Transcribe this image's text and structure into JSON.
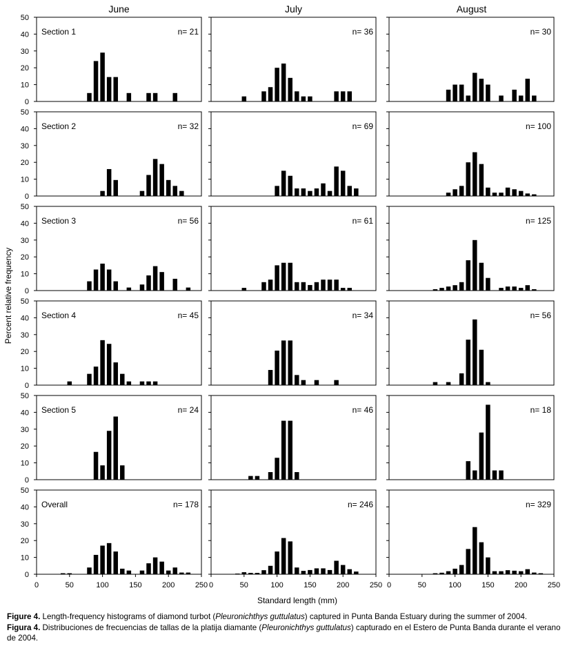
{
  "chart_data": {
    "type": "bar",
    "layout": "grid of small-multiple histograms (6 rows x 3 columns)",
    "ylabel": "Percent relative frequency",
    "xlabel": "Standard length (mm)",
    "x_ticks": [
      0,
      50,
      100,
      150,
      200,
      250
    ],
    "xlim": [
      0,
      250
    ],
    "ylim": [
      0,
      50
    ],
    "y_ticks": [
      0,
      10,
      20,
      30,
      40,
      50
    ],
    "bin_width": 10,
    "columns": [
      "June",
      "July",
      "August"
    ],
    "rows": [
      {
        "label": "Section 1",
        "panels": [
          {
            "n": "n= 21",
            "bars": [
              [
                80,
                5
              ],
              [
                90,
                24
              ],
              [
                100,
                29
              ],
              [
                110,
                14.5
              ],
              [
                120,
                14.5
              ],
              [
                140,
                5
              ],
              [
                170,
                5
              ],
              [
                180,
                5
              ],
              [
                210,
                5
              ]
            ]
          },
          {
            "n": "n= 36",
            "bars": [
              [
                50,
                3
              ],
              [
                80,
                6
              ],
              [
                90,
                8.5
              ],
              [
                100,
                20
              ],
              [
                110,
                22.5
              ],
              [
                120,
                14
              ],
              [
                130,
                6
              ],
              [
                140,
                3
              ],
              [
                150,
                3
              ],
              [
                190,
                6
              ],
              [
                200,
                6
              ],
              [
                210,
                6
              ]
            ]
          },
          {
            "n": "n= 30",
            "bars": [
              [
                90,
                7
              ],
              [
                100,
                10
              ],
              [
                110,
                10
              ],
              [
                120,
                3.5
              ],
              [
                130,
                17
              ],
              [
                140,
                13.5
              ],
              [
                150,
                10
              ],
              [
                170,
                3.5
              ],
              [
                190,
                7
              ],
              [
                200,
                3.5
              ],
              [
                210,
                13.5
              ],
              [
                220,
                3.5
              ]
            ]
          }
        ]
      },
      {
        "label": "Section 2",
        "panels": [
          {
            "n": "n= 32",
            "bars": [
              [
                100,
                3
              ],
              [
                110,
                16
              ],
              [
                120,
                9.5
              ],
              [
                160,
                3
              ],
              [
                170,
                12.5
              ],
              [
                180,
                22
              ],
              [
                190,
                19
              ],
              [
                200,
                9.5
              ],
              [
                210,
                6
              ],
              [
                220,
                3
              ]
            ]
          },
          {
            "n": "n= 69",
            "bars": [
              [
                100,
                6
              ],
              [
                110,
                15
              ],
              [
                120,
                12
              ],
              [
                130,
                4.5
              ],
              [
                140,
                4.5
              ],
              [
                150,
                3
              ],
              [
                160,
                4.5
              ],
              [
                170,
                7.5
              ],
              [
                180,
                3
              ],
              [
                190,
                17.5
              ],
              [
                200,
                15
              ],
              [
                210,
                6
              ],
              [
                220,
                4.5
              ]
            ]
          },
          {
            "n": "n= 100",
            "bars": [
              [
                90,
                2
              ],
              [
                100,
                4
              ],
              [
                110,
                6
              ],
              [
                120,
                20
              ],
              [
                130,
                26
              ],
              [
                140,
                19
              ],
              [
                150,
                5
              ],
              [
                160,
                2
              ],
              [
                170,
                2
              ],
              [
                180,
                5
              ],
              [
                190,
                4
              ],
              [
                200,
                3
              ],
              [
                210,
                1.5
              ],
              [
                220,
                1
              ]
            ]
          }
        ]
      },
      {
        "label": "Section 3",
        "panels": [
          {
            "n": "n= 56",
            "bars": [
              [
                80,
                5.5
              ],
              [
                90,
                12.5
              ],
              [
                100,
                16
              ],
              [
                110,
                12.5
              ],
              [
                120,
                5.5
              ],
              [
                140,
                1.8
              ],
              [
                160,
                3.6
              ],
              [
                170,
                9
              ],
              [
                180,
                14.5
              ],
              [
                190,
                11
              ],
              [
                210,
                7
              ],
              [
                230,
                1.8
              ]
            ]
          },
          {
            "n": "n= 61",
            "bars": [
              [
                50,
                1.6
              ],
              [
                80,
                5
              ],
              [
                90,
                6.5
              ],
              [
                100,
                15
              ],
              [
                110,
                16.5
              ],
              [
                120,
                16.5
              ],
              [
                130,
                5
              ],
              [
                140,
                5
              ],
              [
                150,
                3.3
              ],
              [
                160,
                5
              ],
              [
                170,
                6.5
              ],
              [
                180,
                6.5
              ],
              [
                190,
                6.5
              ],
              [
                200,
                1.6
              ],
              [
                210,
                1.6
              ]
            ]
          },
          {
            "n": "n= 125",
            "bars": [
              [
                70,
                0.8
              ],
              [
                80,
                1.6
              ],
              [
                90,
                2.4
              ],
              [
                100,
                3.2
              ],
              [
                110,
                5
              ],
              [
                120,
                18
              ],
              [
                130,
                30
              ],
              [
                140,
                16.5
              ],
              [
                150,
                7.5
              ],
              [
                170,
                1.6
              ],
              [
                180,
                2.4
              ],
              [
                190,
                2.4
              ],
              [
                200,
                1.6
              ],
              [
                210,
                3.2
              ],
              [
                220,
                0.8
              ]
            ]
          }
        ]
      },
      {
        "label": "Section 4",
        "panels": [
          {
            "n": "n= 45",
            "bars": [
              [
                50,
                2.2
              ],
              [
                80,
                6.7
              ],
              [
                90,
                11
              ],
              [
                100,
                26.7
              ],
              [
                110,
                24.5
              ],
              [
                120,
                13.5
              ],
              [
                130,
                6.7
              ],
              [
                140,
                2.2
              ],
              [
                160,
                2.2
              ],
              [
                170,
                2.2
              ],
              [
                180,
                2.2
              ]
            ]
          },
          {
            "n": "n= 34",
            "bars": [
              [
                90,
                9
              ],
              [
                100,
                20.5
              ],
              [
                110,
                26.5
              ],
              [
                120,
                26.5
              ],
              [
                130,
                6
              ],
              [
                140,
                3
              ],
              [
                160,
                3
              ],
              [
                190,
                3
              ]
            ]
          },
          {
            "n": "n= 56",
            "bars": [
              [
                70,
                1.8
              ],
              [
                90,
                1.8
              ],
              [
                110,
                7
              ],
              [
                120,
                27
              ],
              [
                130,
                39
              ],
              [
                140,
                21
              ],
              [
                150,
                1.8
              ]
            ]
          }
        ]
      },
      {
        "label": "Section 5",
        "panels": [
          {
            "n": "n= 24",
            "bars": [
              [
                90,
                16.5
              ],
              [
                100,
                8.5
              ],
              [
                110,
                29
              ],
              [
                120,
                37.5
              ],
              [
                130,
                8.5
              ]
            ]
          },
          {
            "n": "n= 46",
            "bars": [
              [
                60,
                2.2
              ],
              [
                70,
                2.2
              ],
              [
                90,
                4.5
              ],
              [
                100,
                13
              ],
              [
                110,
                35
              ],
              [
                120,
                35
              ],
              [
                130,
                4.5
              ]
            ]
          },
          {
            "n": "n= 18",
            "bars": [
              [
                120,
                11
              ],
              [
                130,
                5.5
              ],
              [
                140,
                28
              ],
              [
                150,
                44.5
              ],
              [
                160,
                5.5
              ],
              [
                170,
                5.5
              ]
            ]
          }
        ]
      },
      {
        "label": "Overall",
        "panels": [
          {
            "n": "n= 178",
            "bars": [
              [
                40,
                0.6
              ],
              [
                50,
                0.6
              ],
              [
                80,
                4
              ],
              [
                90,
                11.5
              ],
              [
                100,
                17
              ],
              [
                110,
                18.5
              ],
              [
                120,
                13.5
              ],
              [
                130,
                3.3
              ],
              [
                140,
                2.2
              ],
              [
                160,
                2.2
              ],
              [
                170,
                6.5
              ],
              [
                180,
                10
              ],
              [
                190,
                7.5
              ],
              [
                200,
                2.2
              ],
              [
                210,
                4
              ],
              [
                220,
                1
              ],
              [
                230,
                1
              ]
            ]
          },
          {
            "n": "n= 246",
            "bars": [
              [
                40,
                0.4
              ],
              [
                50,
                1.2
              ],
              [
                60,
                0.8
              ],
              [
                70,
                0.8
              ],
              [
                80,
                2.4
              ],
              [
                90,
                5
              ],
              [
                100,
                13.5
              ],
              [
                110,
                21.5
              ],
              [
                120,
                19.5
              ],
              [
                130,
                4
              ],
              [
                140,
                2
              ],
              [
                150,
                2.5
              ],
              [
                160,
                3.5
              ],
              [
                170,
                3.5
              ],
              [
                180,
                2.5
              ],
              [
                190,
                8
              ],
              [
                200,
                5.5
              ],
              [
                210,
                3
              ],
              [
                220,
                1.6
              ]
            ]
          },
          {
            "n": "n= 329",
            "bars": [
              [
                70,
                0.6
              ],
              [
                80,
                0.9
              ],
              [
                90,
                1.8
              ],
              [
                100,
                3.3
              ],
              [
                110,
                5.5
              ],
              [
                120,
                15
              ],
              [
                130,
                28
              ],
              [
                140,
                19
              ],
              [
                150,
                10
              ],
              [
                160,
                1.8
              ],
              [
                170,
                1.8
              ],
              [
                180,
                2.4
              ],
              [
                190,
                2.1
              ],
              [
                200,
                1.8
              ],
              [
                210,
                3
              ],
              [
                220,
                1
              ],
              [
                230,
                0.6
              ]
            ]
          }
        ]
      }
    ]
  },
  "caption": {
    "en_label": "Figure 4.",
    "en_text_1": " Length-frequency histograms of diamond turbot (",
    "en_species": "Pleuronichthys guttulatus",
    "en_text_2": ") captured in Punta Banda Estuary during the summer of 2004.",
    "es_label": "Figura 4.",
    "es_text_1": " Distribuciones de frecuencias de tallas de la platija diamante (",
    "es_species": "Pleuronichthys guttulatus",
    "es_text_2": ") capturado en el Estero de Punta Banda durante el verano de 2004."
  }
}
